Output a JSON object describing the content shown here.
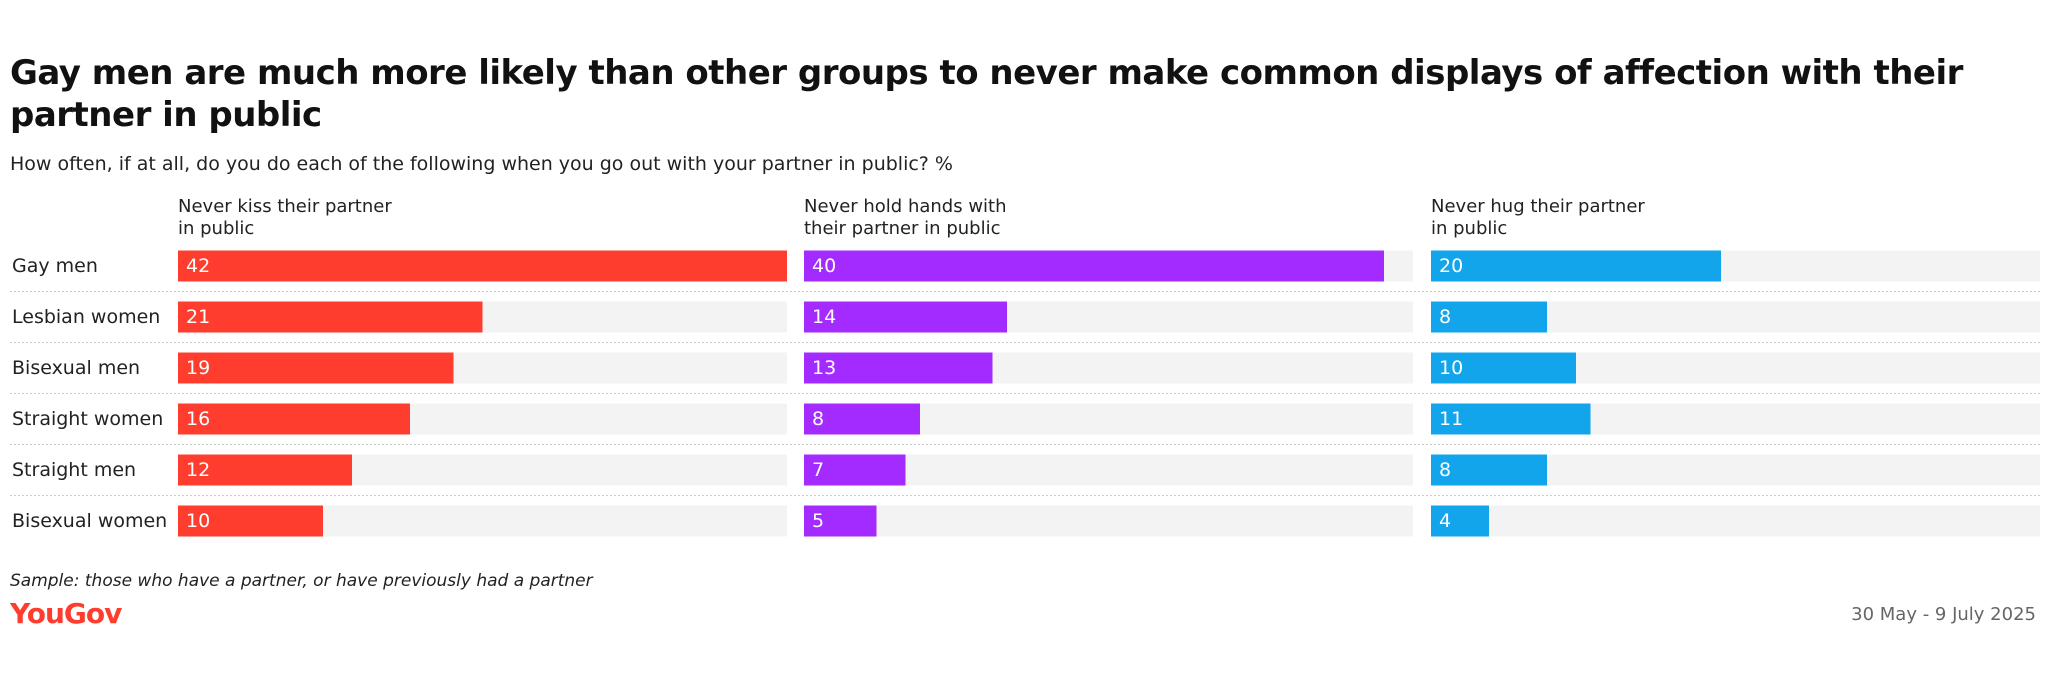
{
  "chart_data": {
    "type": "bar",
    "orientation": "horizontal",
    "title": "Gay men are much more likely than other groups to never make common displays of affection with their partner in public",
    "subtitle": "How often, if at all, do you do each of the following when you go out with your partner in public? %",
    "categories": [
      "Gay men",
      "Lesbian women",
      "Bisexual men",
      "Straight women",
      "Straight men",
      "Bisexual women"
    ],
    "series": [
      {
        "name": "Never kiss their partner in public",
        "color": "#ff3d2e",
        "values": [
          42,
          21,
          19,
          16,
          12,
          10
        ]
      },
      {
        "name": "Never hold hands with their partner in public",
        "color": "#a42bff",
        "values": [
          40,
          14,
          13,
          8,
          7,
          5
        ]
      },
      {
        "name": "Never hug their partner in public",
        "color": "#12a5ec",
        "values": [
          20,
          8,
          10,
          11,
          8,
          4
        ]
      }
    ],
    "xlim": [
      0,
      42
    ],
    "note": "Sample: those who have a partner, or have previously had a partner",
    "source": "YouGov",
    "date": "30 May - 9 July 2025"
  }
}
